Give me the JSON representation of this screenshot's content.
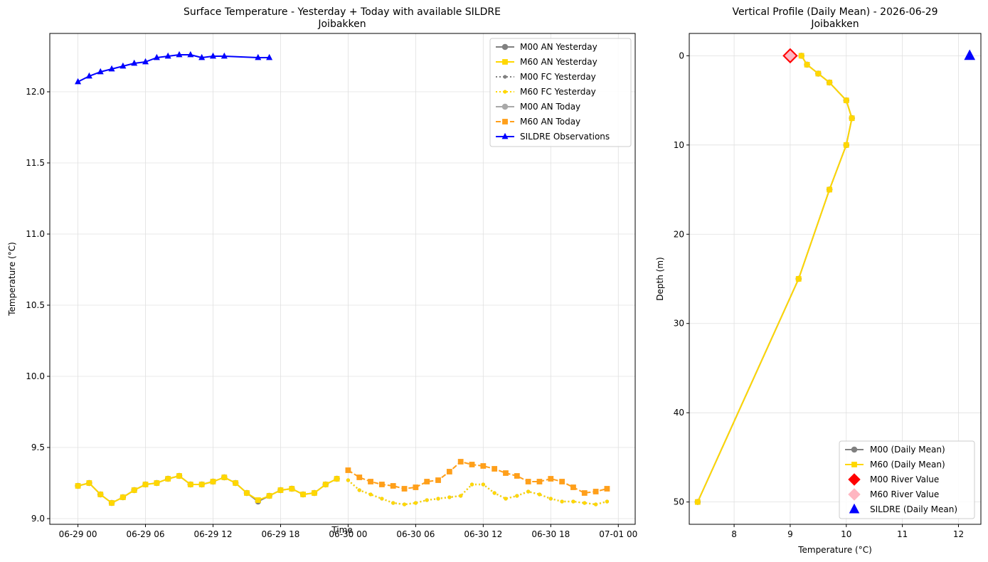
{
  "chart_data": [
    {
      "type": "line",
      "title": "Surface Temperature - Yesterday + Today with available SILDRE",
      "subtitle": "Joibakken",
      "xlabel": "Time",
      "ylabel": "Temperature (°C)",
      "x_ticks": [
        "06-29 00",
        "06-29 06",
        "06-29 12",
        "06-29 18",
        "06-30 00",
        "06-30 06",
        "06-30 12",
        "06-30 18",
        "07-01 00"
      ],
      "x_range_hours": [
        -2.5,
        49.5
      ],
      "ylim": [
        8.96,
        12.41
      ],
      "y_ticks": [
        9.0,
        9.5,
        10.0,
        10.5,
        11.0,
        11.5,
        12.0
      ],
      "y_tick_labels": [
        "9.0",
        "9.5",
        "10.0",
        "10.5",
        "11.0",
        "11.5",
        "12.0"
      ],
      "grid": true,
      "legend_position": "top-right",
      "series": [
        {
          "name": "M00 AN Yesterday",
          "color": "#808080",
          "style": "solid",
          "marker": "circle",
          "x_hours": [
            0,
            1,
            2,
            3,
            4,
            5,
            6,
            7,
            8,
            9,
            10,
            11,
            12,
            13,
            14,
            15,
            16,
            17,
            18,
            19,
            20,
            21,
            22,
            23
          ],
          "values": [
            9.23,
            9.25,
            9.17,
            9.11,
            9.15,
            9.2,
            9.24,
            9.25,
            9.28,
            9.3,
            9.24,
            9.24,
            9.26,
            9.29,
            9.25,
            9.18,
            9.12,
            9.16,
            9.2,
            9.21,
            9.17,
            9.18,
            9.24,
            9.28
          ]
        },
        {
          "name": "M60 AN Yesterday",
          "color": "#ffd700",
          "style": "solid",
          "marker": "square",
          "x_hours": [
            0,
            1,
            2,
            3,
            4,
            5,
            6,
            7,
            8,
            9,
            10,
            11,
            12,
            13,
            14,
            15,
            16,
            17,
            18,
            19,
            20,
            21,
            22,
            23
          ],
          "values": [
            9.23,
            9.25,
            9.17,
            9.11,
            9.15,
            9.2,
            9.24,
            9.25,
            9.28,
            9.3,
            9.24,
            9.24,
            9.26,
            9.29,
            9.25,
            9.18,
            9.13,
            9.16,
            9.2,
            9.21,
            9.17,
            9.18,
            9.24,
            9.28
          ]
        },
        {
          "name": "M00 FC Yesterday",
          "color": "#808080",
          "style": "dotted",
          "marker": "circle",
          "x_hours": [
            24,
            25,
            26,
            27,
            28,
            29,
            30,
            31,
            32,
            33,
            34,
            35,
            36,
            37,
            38,
            39,
            40,
            41,
            42,
            43,
            44,
            45,
            46,
            47
          ],
          "values": [
            9.27,
            9.2,
            9.17,
            9.14,
            9.11,
            9.1,
            9.11,
            9.13,
            9.14,
            9.15,
            9.16,
            9.24,
            9.24,
            9.18,
            9.14,
            9.16,
            9.19,
            9.17,
            9.14,
            9.12,
            9.12,
            9.11,
            9.1,
            9.12
          ]
        },
        {
          "name": "M60 FC Yesterday",
          "color": "#ffd700",
          "style": "dotted",
          "marker": "circle",
          "x_hours": [
            24,
            25,
            26,
            27,
            28,
            29,
            30,
            31,
            32,
            33,
            34,
            35,
            36,
            37,
            38,
            39,
            40,
            41,
            42,
            43,
            44,
            45,
            46,
            47
          ],
          "values": [
            9.27,
            9.2,
            9.17,
            9.14,
            9.11,
            9.1,
            9.11,
            9.13,
            9.14,
            9.15,
            9.16,
            9.24,
            9.24,
            9.18,
            9.14,
            9.16,
            9.19,
            9.17,
            9.14,
            9.12,
            9.12,
            9.11,
            9.1,
            9.12
          ]
        },
        {
          "name": "M00 AN Today",
          "color": "#a9a9a9",
          "style": "solid",
          "marker": "circle",
          "x_hours": [],
          "values": []
        },
        {
          "name": "M60 AN Today",
          "color": "#ff9f1a",
          "style": "dashed",
          "marker": "square",
          "x_hours": [
            24,
            25,
            26,
            27,
            28,
            29,
            30,
            31,
            32,
            33,
            34,
            35,
            36,
            37,
            38,
            39,
            40,
            41,
            42,
            43,
            44,
            45,
            46,
            47
          ],
          "values": [
            9.34,
            9.29,
            9.26,
            9.24,
            9.23,
            9.21,
            9.22,
            9.26,
            9.27,
            9.33,
            9.4,
            9.38,
            9.37,
            9.35,
            9.32,
            9.3,
            9.26,
            9.26,
            9.28,
            9.26,
            9.22,
            9.18,
            9.19,
            9.21
          ]
        },
        {
          "name": "SILDRE Observations",
          "color": "#0000ff",
          "style": "solid",
          "marker": "triangle",
          "x_hours": [
            0,
            1,
            2,
            3,
            4,
            5,
            6,
            7,
            8,
            9,
            10,
            11,
            12,
            13,
            16,
            17
          ],
          "values": [
            12.07,
            12.11,
            12.14,
            12.16,
            12.18,
            12.2,
            12.21,
            12.24,
            12.25,
            12.26,
            12.26,
            12.24,
            12.25,
            12.25,
            12.24,
            12.24
          ]
        }
      ]
    },
    {
      "type": "line",
      "title": "Vertical Profile (Daily Mean) - 2026-06-29",
      "subtitle": "Joibakken",
      "xlabel": "Temperature (°C)",
      "ylabel": "Depth (m)",
      "xlim": [
        7.2,
        12.4
      ],
      "x_ticks": [
        8,
        9,
        10,
        11,
        12
      ],
      "ylim": [
        52.5,
        -2.5
      ],
      "y_ticks": [
        0,
        10,
        20,
        30,
        40,
        50
      ],
      "y_inverted": true,
      "grid": true,
      "legend_position": "bottom-right",
      "series": [
        {
          "name": "M00 (Daily Mean)",
          "color": "#808080",
          "style": "solid",
          "marker": "circle",
          "depth": [
            0,
            1,
            2,
            3,
            5,
            7,
            10,
            15,
            25,
            50
          ],
          "values": [
            9.2,
            9.3,
            9.5,
            9.7,
            10.0,
            10.1,
            10.0,
            9.7,
            9.15,
            7.35
          ]
        },
        {
          "name": "M60 (Daily Mean)",
          "color": "#ffd700",
          "style": "solid",
          "marker": "square",
          "depth": [
            0,
            1,
            2,
            3,
            5,
            7,
            10,
            15,
            25,
            50
          ],
          "values": [
            9.2,
            9.3,
            9.5,
            9.7,
            10.0,
            10.1,
            10.0,
            9.7,
            9.15,
            7.35
          ]
        },
        {
          "name": "M00 River Value",
          "color": "#ff0000",
          "marker": "diamond",
          "points": [
            {
              "x": 9.0,
              "depth": 0
            }
          ]
        },
        {
          "name": "M60 River Value",
          "color": "#ffb6c1",
          "marker": "diamond",
          "points": [
            {
              "x": 9.0,
              "depth": 0
            }
          ]
        },
        {
          "name": "SILDRE (Daily Mean)",
          "color": "#0000ff",
          "marker": "triangle",
          "points": [
            {
              "x": 12.2,
              "depth": 0
            }
          ]
        }
      ]
    }
  ]
}
